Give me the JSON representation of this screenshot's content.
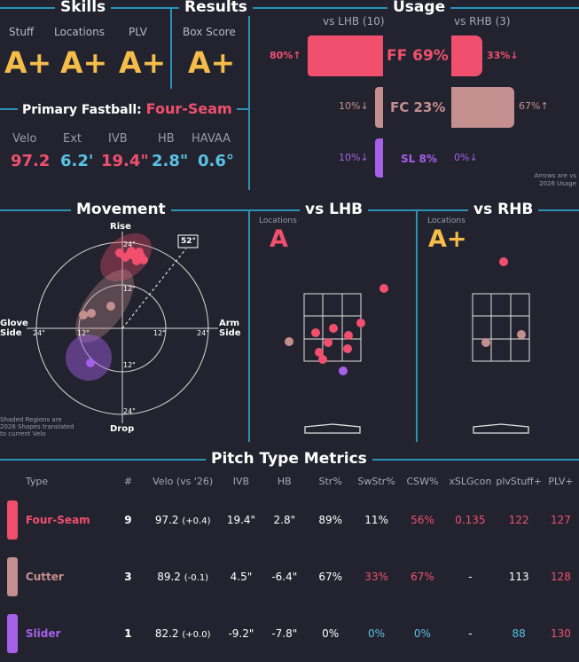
{
  "skills": {
    "title": "Skills",
    "items": [
      {
        "label": "Stuff",
        "grade": "A+"
      },
      {
        "label": "Locations",
        "grade": "A+"
      },
      {
        "label": "PLV",
        "grade": "A+"
      }
    ]
  },
  "results": {
    "title": "Results",
    "label": "Box Score",
    "grade": "A+"
  },
  "primary_fastball": {
    "prefix": "Primary Fastball:",
    "name": "Four-Seam",
    "metrics": [
      {
        "label": "Velo",
        "value": "97.2",
        "color": "#f0506e"
      },
      {
        "label": "Ext",
        "value": "6.2'",
        "color": "#58c1e6"
      },
      {
        "label": "IVB",
        "value": "19.4\"",
        "color": "#f0506e"
      },
      {
        "label": "HB",
        "value": "2.8\"",
        "color": "#58c1e6"
      },
      {
        "label": "HAVAA",
        "value": "0.6°",
        "color": "#58c1e6"
      }
    ]
  },
  "usage": {
    "title": "Usage",
    "lhb_header": "vs LHB (10)",
    "rhb_header": "vs RHB (3)",
    "rows": [
      {
        "pitch": "FF 69%",
        "lhb": "80%↑",
        "rhb": "33%↓",
        "lhb_pct": 80,
        "rhb_pct": 33,
        "color": "#f0506e"
      },
      {
        "pitch": "FC 23%",
        "lhb": "10%↓",
        "rhb": "67%↑",
        "lhb_pct": 10,
        "rhb_pct": 67,
        "color": "#c48f8f"
      },
      {
        "pitch": "SL 8%",
        "lhb": "10%↓",
        "rhb": "0%↓",
        "lhb_pct": 10,
        "rhb_pct": 0,
        "color": "#a560e8"
      }
    ],
    "note_line1": "Arrows are vs",
    "note_line2": "2026 Usage"
  },
  "movement": {
    "title": "Movement",
    "rise": "Rise",
    "drop": "Drop",
    "glove_line1": "Glove",
    "glove_line2": "Side",
    "arm_line1": "Arm",
    "arm_line2": "Side",
    "arm_angle": "52°",
    "ring_24": "24\"",
    "ring_12": "12\"",
    "note_line1": "Shaded Regions are",
    "note_line2": "2026 Shapes translated",
    "note_line3": "to current Velo"
  },
  "vs_lhb": {
    "title": "vs LHB",
    "locations_label": "Locations",
    "grade": "A",
    "grade_color": "#f0506e"
  },
  "vs_rhb": {
    "title": "vs RHB",
    "locations_label": "Locations",
    "grade": "A+",
    "grade_color": "#f4bd4a"
  },
  "pitch_metrics": {
    "title": "Pitch Type Metrics",
    "headers": [
      "Type",
      "#",
      "Velo (vs '26)",
      "IVB",
      "HB",
      "Str%",
      "SwStr%",
      "CSW%",
      "xSLGcon",
      "plvStuff+",
      "PLV+"
    ],
    "rows": [
      {
        "type": "Four-Seam",
        "color": "#f0506e",
        "count": "9",
        "velo": "97.2",
        "velo_delta": "(+0.4)",
        "ivb": "19.4\"",
        "hb": "2.8\"",
        "str": "89%",
        "swstr": "11%",
        "csw": "56%",
        "xslg": "0.135",
        "stuff": "122",
        "plv": "127"
      },
      {
        "type": "Cutter",
        "color": "#c48f8f",
        "count": "3",
        "velo": "89.2",
        "velo_delta": "(-0.1)",
        "ivb": "4.5\"",
        "hb": "-6.4\"",
        "str": "67%",
        "swstr": "33%",
        "csw": "67%",
        "xslg": "-",
        "stuff": "113",
        "plv": "128"
      },
      {
        "type": "Slider",
        "color": "#a560e8",
        "count": "1",
        "velo": "82.2",
        "velo_delta": "(+0.0)",
        "ivb": "-9.2\"",
        "hb": "-7.8\"",
        "str": "0%",
        "swstr": "0%",
        "csw": "0%",
        "xslg": "-",
        "stuff": "88",
        "plv": "130"
      }
    ]
  }
}
